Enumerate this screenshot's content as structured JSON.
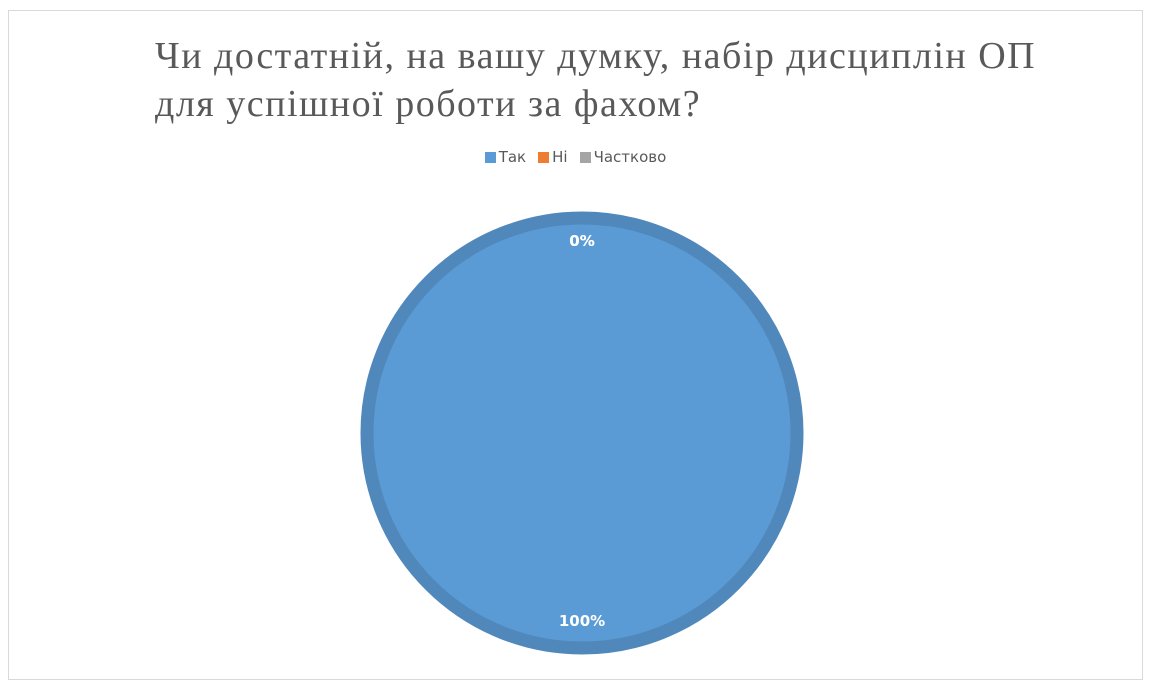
{
  "chart_data": {
    "type": "pie",
    "title": "Чи достатній, на вашу думку, набір дисциплін ОП для успішної роботи за фахом?",
    "categories": [
      "Так",
      "Ні",
      "Частково"
    ],
    "values": [
      100,
      0,
      0
    ],
    "data_labels": [
      "100%",
      "0%",
      "0%"
    ],
    "colors": [
      "#5b9bd5",
      "#ed7d31",
      "#a5a5a5"
    ],
    "legend_position": "top"
  }
}
